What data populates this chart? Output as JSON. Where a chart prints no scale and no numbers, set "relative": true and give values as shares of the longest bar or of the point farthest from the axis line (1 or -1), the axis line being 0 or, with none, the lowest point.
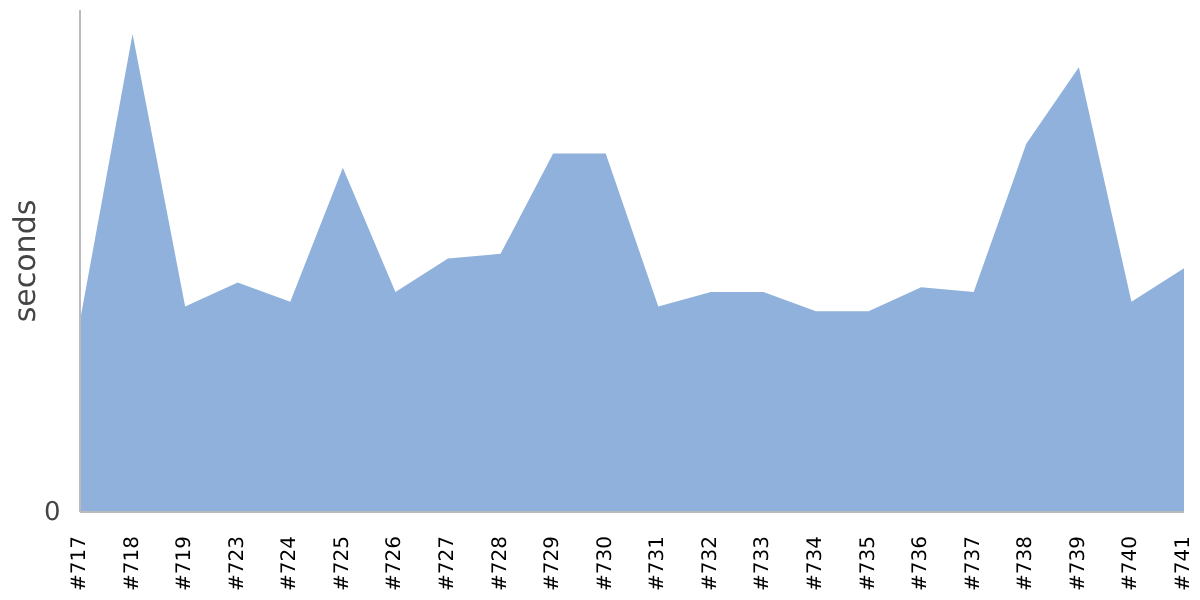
{
  "chart_data": {
    "type": "area",
    "ylabel": "seconds",
    "relative": true,
    "annotations": [
      "0"
    ],
    "color": "#8fb1db",
    "grid": false,
    "legend": false,
    "categories": [
      "#717",
      "#718",
      "#719",
      "#723",
      "#724",
      "#725",
      "#726",
      "#727",
      "#728",
      "#729",
      "#730",
      "#731",
      "#732",
      "#733",
      "#734",
      "#735",
      "#736",
      "#737",
      "#738",
      "#739",
      "#740",
      "#741"
    ],
    "values": [
      0.4,
      1,
      0.43,
      0.48,
      0.44,
      0.72,
      0.46,
      0.53,
      0.54,
      0.75,
      0.75,
      0.43,
      0.46,
      0.46,
      0.42,
      0.42,
      0.47,
      0.46,
      0.77,
      0.93,
      0.44,
      0.51
    ]
  }
}
